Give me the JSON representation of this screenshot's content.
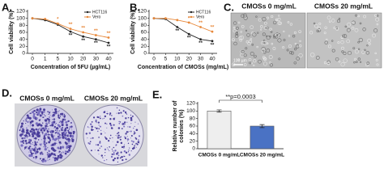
{
  "panels": {
    "C": {
      "letter": "C.",
      "labels": [
        "CMOSs 0 mg/mL",
        "CMOSs 20 mg/mL"
      ],
      "scale_bar": "100 µm"
    },
    "D": {
      "letter": "D.",
      "labels": [
        "CMOSs 0 mg/mL",
        "CMOSs 20 mg/mL"
      ]
    }
  },
  "chart_data": [
    {
      "type": "line",
      "panel_label": "A.",
      "xlabel": "Concentration of 5FU (µg/mL)",
      "ylabel": [
        "Cell viability (%)"
      ],
      "categories": [
        "0",
        "1",
        "5",
        "10",
        "20",
        "30",
        "40"
      ],
      "series": [
        {
          "name": "HCT116",
          "color": "#222222",
          "values": [
            100,
            95,
            82,
            62,
            48,
            40,
            30
          ]
        },
        {
          "name": "Vero",
          "color": "#e8883a",
          "values": [
            100,
            98,
            85,
            70,
            60,
            52,
            45
          ]
        }
      ],
      "annotations": [
        {
          "text": "**",
          "series": 0,
          "category": "10"
        },
        {
          "text": "**",
          "series": 0,
          "category": "20"
        },
        {
          "text": "**",
          "series": 0,
          "category": "30"
        },
        {
          "text": "**",
          "series": 0,
          "category": "40"
        },
        {
          "text": "*",
          "series": 1,
          "category": "5"
        },
        {
          "text": "**",
          "series": 1,
          "category": "10"
        },
        {
          "text": "**",
          "series": 1,
          "category": "20"
        },
        {
          "text": "**",
          "series": 1,
          "category": "30"
        },
        {
          "text": "**",
          "series": 1,
          "category": "40"
        }
      ],
      "ylim": [
        0,
        120
      ],
      "yticks": [
        0,
        20,
        40,
        60,
        80,
        100,
        120
      ],
      "grid": false
    },
    {
      "type": "line",
      "panel_label": "B.",
      "xlabel": "Concentration of CMOSs (mg/mL)",
      "ylabel": [
        "Cell viability (%)"
      ],
      "categories": [
        "0",
        "5",
        "10",
        "20",
        "30",
        "40"
      ],
      "series": [
        {
          "name": "HCT116",
          "color": "#222222",
          "values": [
            100,
            98,
            75,
            55,
            40,
            35
          ]
        },
        {
          "name": "Vero",
          "color": "#e8883a",
          "values": [
            100,
            100,
            95,
            88,
            75,
            62
          ]
        }
      ],
      "annotations": [
        {
          "text": "**",
          "series": 0,
          "category": "10"
        },
        {
          "text": "**",
          "series": 0,
          "category": "20"
        },
        {
          "text": "**",
          "series": 0,
          "category": "30"
        },
        {
          "text": "**",
          "series": 0,
          "category": "40"
        },
        {
          "text": "*",
          "series": 1,
          "category": "20"
        },
        {
          "text": "**",
          "series": 1,
          "category": "30"
        },
        {
          "text": "**",
          "series": 1,
          "category": "40"
        }
      ],
      "ylim": [
        0,
        120
      ],
      "yticks": [
        0,
        20,
        40,
        60,
        80,
        100,
        120
      ],
      "grid": false
    },
    {
      "type": "bar",
      "panel_label": "E.",
      "ylabel": [
        "Relative number of",
        "colonies (%)"
      ],
      "categories": [
        "CMOSs 0 mg/mL",
        "CMOSs 20 mg/mL"
      ],
      "values": [
        100,
        60
      ],
      "errors": [
        3,
        4
      ],
      "colors": [
        "#eeeeee",
        "#4a72c4"
      ],
      "annotations": [
        {
          "text": "**p=0.0003"
        }
      ],
      "ylim": [
        0,
        120
      ],
      "yticks": [
        0,
        20,
        40,
        60,
        80,
        100,
        120
      ],
      "grid": false
    }
  ]
}
